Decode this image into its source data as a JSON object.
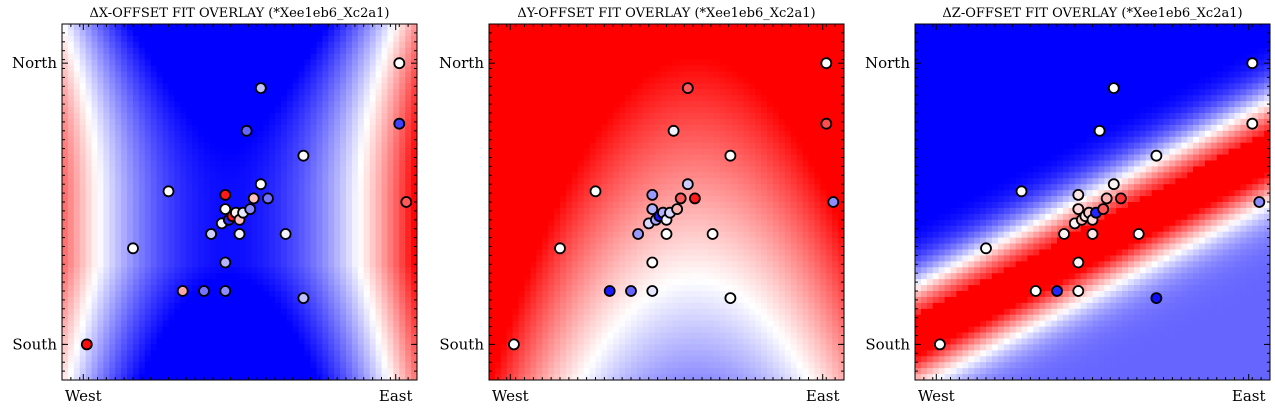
{
  "chart_data": [
    {
      "type": "heatmap",
      "title": "ΔX-OFFSET FIT OVERLAY (*Xee1eb6_Xc2a1)",
      "field": "saddle",
      "xticks": [
        "West",
        "East"
      ],
      "yticks": [
        "North",
        "South"
      ],
      "colormap": [
        "#0000ff",
        "#ffffff",
        "#ff0000"
      ],
      "points": [
        {
          "x": 0.07,
          "y": 0.9,
          "v": 0.95
        },
        {
          "x": 0.2,
          "y": 0.63,
          "v": 0.0
        },
        {
          "x": 0.34,
          "y": 0.75,
          "v": 0.35
        },
        {
          "x": 0.4,
          "y": 0.75,
          "v": -0.55
        },
        {
          "x": 0.46,
          "y": 0.75,
          "v": -0.45
        },
        {
          "x": 0.46,
          "y": 0.67,
          "v": -0.3
        },
        {
          "x": 0.42,
          "y": 0.59,
          "v": -0.2
        },
        {
          "x": 0.45,
          "y": 0.56,
          "v": -0.05
        },
        {
          "x": 0.47,
          "y": 0.55,
          "v": -0.85
        },
        {
          "x": 0.48,
          "y": 0.54,
          "v": 0.9
        },
        {
          "x": 0.46,
          "y": 0.52,
          "v": 0.0
        },
        {
          "x": 0.46,
          "y": 0.48,
          "v": 0.9
        },
        {
          "x": 0.49,
          "y": 0.53,
          "v": 0.05
        },
        {
          "x": 0.5,
          "y": 0.55,
          "v": 0.25
        },
        {
          "x": 0.5,
          "y": 0.59,
          "v": -0.05
        },
        {
          "x": 0.51,
          "y": 0.53,
          "v": -0.1
        },
        {
          "x": 0.53,
          "y": 0.52,
          "v": -0.45
        },
        {
          "x": 0.54,
          "y": 0.49,
          "v": 0.25
        },
        {
          "x": 0.56,
          "y": 0.45,
          "v": 0.0
        },
        {
          "x": 0.58,
          "y": 0.49,
          "v": -0.55
        },
        {
          "x": 0.63,
          "y": 0.59,
          "v": -0.05
        },
        {
          "x": 0.68,
          "y": 0.77,
          "v": -0.25
        },
        {
          "x": 0.68,
          "y": 0.37,
          "v": 0.0
        },
        {
          "x": 0.52,
          "y": 0.3,
          "v": -0.6
        },
        {
          "x": 0.56,
          "y": 0.18,
          "v": -0.25
        },
        {
          "x": 0.3,
          "y": 0.47,
          "v": 0.0
        },
        {
          "x": 0.95,
          "y": 0.11,
          "v": 0.0
        },
        {
          "x": 0.95,
          "y": 0.28,
          "v": -0.75
        },
        {
          "x": 0.97,
          "y": 0.5,
          "v": 0.65
        }
      ]
    },
    {
      "type": "heatmap",
      "title": "ΔY-OFFSET FIT OVERLAY (*Xee1eb6_Xc2a1)",
      "field": "bowl",
      "xticks": [
        "West",
        "East"
      ],
      "yticks": [
        "North",
        "South"
      ],
      "colormap": [
        "#0000ff",
        "#ffffff",
        "#ff0000"
      ],
      "points": [
        {
          "x": 0.07,
          "y": 0.9,
          "v": 0.0
        },
        {
          "x": 0.2,
          "y": 0.63,
          "v": 0.0
        },
        {
          "x": 0.34,
          "y": 0.75,
          "v": -0.9
        },
        {
          "x": 0.4,
          "y": 0.75,
          "v": -0.6
        },
        {
          "x": 0.46,
          "y": 0.75,
          "v": -0.1
        },
        {
          "x": 0.46,
          "y": 0.67,
          "v": 0.0
        },
        {
          "x": 0.42,
          "y": 0.59,
          "v": -0.4
        },
        {
          "x": 0.45,
          "y": 0.56,
          "v": -0.15
        },
        {
          "x": 0.47,
          "y": 0.55,
          "v": -0.35
        },
        {
          "x": 0.48,
          "y": 0.54,
          "v": -0.9
        },
        {
          "x": 0.46,
          "y": 0.52,
          "v": -0.3
        },
        {
          "x": 0.46,
          "y": 0.48,
          "v": -0.4
        },
        {
          "x": 0.49,
          "y": 0.53,
          "v": -0.3
        },
        {
          "x": 0.5,
          "y": 0.55,
          "v": -0.05
        },
        {
          "x": 0.5,
          "y": 0.59,
          "v": 0.0
        },
        {
          "x": 0.51,
          "y": 0.53,
          "v": -0.15
        },
        {
          "x": 0.53,
          "y": 0.52,
          "v": 0.3
        },
        {
          "x": 0.54,
          "y": 0.49,
          "v": 0.65
        },
        {
          "x": 0.56,
          "y": 0.45,
          "v": -0.2
        },
        {
          "x": 0.58,
          "y": 0.49,
          "v": 0.9
        },
        {
          "x": 0.63,
          "y": 0.59,
          "v": 0.0
        },
        {
          "x": 0.68,
          "y": 0.77,
          "v": 0.0
        },
        {
          "x": 0.68,
          "y": 0.37,
          "v": 0.0
        },
        {
          "x": 0.52,
          "y": 0.3,
          "v": -0.05
        },
        {
          "x": 0.56,
          "y": 0.18,
          "v": 0.65
        },
        {
          "x": 0.3,
          "y": 0.47,
          "v": 0.0
        },
        {
          "x": 0.95,
          "y": 0.11,
          "v": 0.0
        },
        {
          "x": 0.95,
          "y": 0.28,
          "v": 0.7
        },
        {
          "x": 0.97,
          "y": 0.5,
          "v": -0.45
        }
      ]
    },
    {
      "type": "heatmap",
      "title": "ΔZ-OFFSET FIT OVERLAY (*Xee1eb6_Xc2a1)",
      "field": "band",
      "xticks": [
        "West",
        "East"
      ],
      "yticks": [
        "North",
        "South"
      ],
      "colormap": [
        "#0000ff",
        "#ffffff",
        "#ff0000"
      ],
      "points": [
        {
          "x": 0.07,
          "y": 0.9,
          "v": 0.0
        },
        {
          "x": 0.2,
          "y": 0.63,
          "v": 0.0
        },
        {
          "x": 0.34,
          "y": 0.75,
          "v": 0.0
        },
        {
          "x": 0.4,
          "y": 0.75,
          "v": -0.85
        },
        {
          "x": 0.46,
          "y": 0.75,
          "v": 0.0
        },
        {
          "x": 0.46,
          "y": 0.67,
          "v": 0.05
        },
        {
          "x": 0.42,
          "y": 0.59,
          "v": 0.05
        },
        {
          "x": 0.45,
          "y": 0.56,
          "v": 0.05
        },
        {
          "x": 0.47,
          "y": 0.55,
          "v": 0.25
        },
        {
          "x": 0.48,
          "y": 0.54,
          "v": 0.1
        },
        {
          "x": 0.46,
          "y": 0.52,
          "v": 0.15
        },
        {
          "x": 0.46,
          "y": 0.48,
          "v": 0.1
        },
        {
          "x": 0.49,
          "y": 0.53,
          "v": 0.2
        },
        {
          "x": 0.5,
          "y": 0.55,
          "v": 0.15
        },
        {
          "x": 0.5,
          "y": 0.59,
          "v": 0.1
        },
        {
          "x": 0.51,
          "y": 0.53,
          "v": -0.85
        },
        {
          "x": 0.53,
          "y": 0.52,
          "v": 0.65
        },
        {
          "x": 0.54,
          "y": 0.49,
          "v": 0.3
        },
        {
          "x": 0.56,
          "y": 0.45,
          "v": 0.05
        },
        {
          "x": 0.58,
          "y": 0.49,
          "v": 0.8
        },
        {
          "x": 0.63,
          "y": 0.59,
          "v": 0.0
        },
        {
          "x": 0.68,
          "y": 0.77,
          "v": -0.95
        },
        {
          "x": 0.68,
          "y": 0.37,
          "v": 0.0
        },
        {
          "x": 0.52,
          "y": 0.3,
          "v": 0.0
        },
        {
          "x": 0.56,
          "y": 0.18,
          "v": 0.0
        },
        {
          "x": 0.3,
          "y": 0.47,
          "v": 0.0
        },
        {
          "x": 0.95,
          "y": 0.11,
          "v": 0.0
        },
        {
          "x": 0.95,
          "y": 0.28,
          "v": 0.0
        },
        {
          "x": 0.97,
          "y": 0.5,
          "v": -0.45
        }
      ]
    }
  ]
}
